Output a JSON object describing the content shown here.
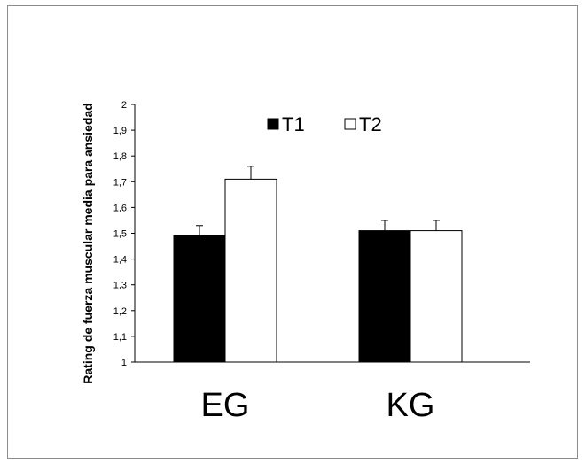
{
  "chart_data": {
    "type": "bar",
    "ylabel": "Rating de fuerza muscular media para ansiedad",
    "xlabel": "",
    "categories": [
      "EG",
      "KG"
    ],
    "series": [
      {
        "name": "T1",
        "values": [
          1.49,
          1.51
        ],
        "errors": [
          0.04,
          0.04
        ],
        "fill": "#000000"
      },
      {
        "name": "T2",
        "values": [
          1.71,
          1.51
        ],
        "errors": [
          0.05,
          0.04
        ],
        "fill": "#ffffff"
      }
    ],
    "ylim": [
      1,
      2
    ],
    "yticks": [
      "1",
      "1,1",
      "1,2",
      "1,3",
      "1,4",
      "1,5",
      "1,6",
      "1,7",
      "1,8",
      "1,9",
      "2"
    ],
    "grid": false,
    "legend_position": "top"
  }
}
